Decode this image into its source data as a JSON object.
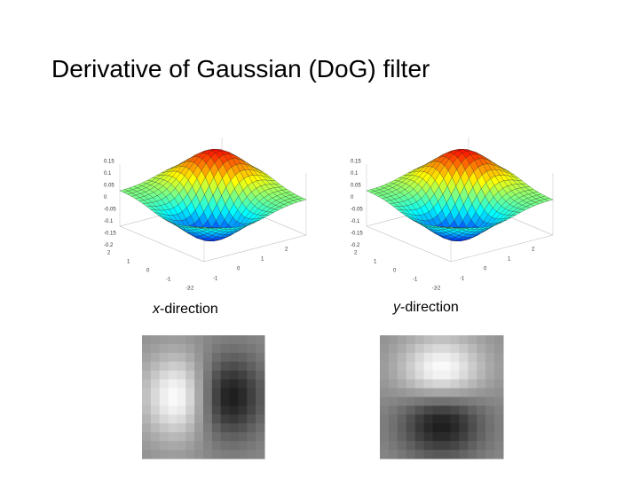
{
  "title": "Derivative of Gaussian (DoG) filter",
  "panels": [
    {
      "caption": {
        "variable": "x",
        "text": "-direction"
      },
      "surface": {
        "z_ticks": [
          "0.15",
          "0.1",
          "0.05",
          "0",
          "-0.05",
          "-0.1",
          "-0.15",
          "-0.2"
        ],
        "y_ticks": [
          "2",
          "1",
          "0",
          "-1",
          "-2"
        ],
        "x_ticks": [
          "-2",
          "-1",
          "0",
          "1",
          "2"
        ]
      }
    },
    {
      "caption": {
        "variable": "y",
        "text": "-direction"
      },
      "surface": {
        "z_ticks": [
          "0.15",
          "0.1",
          "0.05",
          "0",
          "-0.05",
          "-0.1",
          "-0.15",
          "-0.2"
        ],
        "y_ticks": [
          "2",
          "1",
          "0",
          "-1",
          "-2"
        ],
        "x_ticks": [
          "-2",
          "-1",
          "0",
          "1",
          "2"
        ]
      }
    }
  ]
}
